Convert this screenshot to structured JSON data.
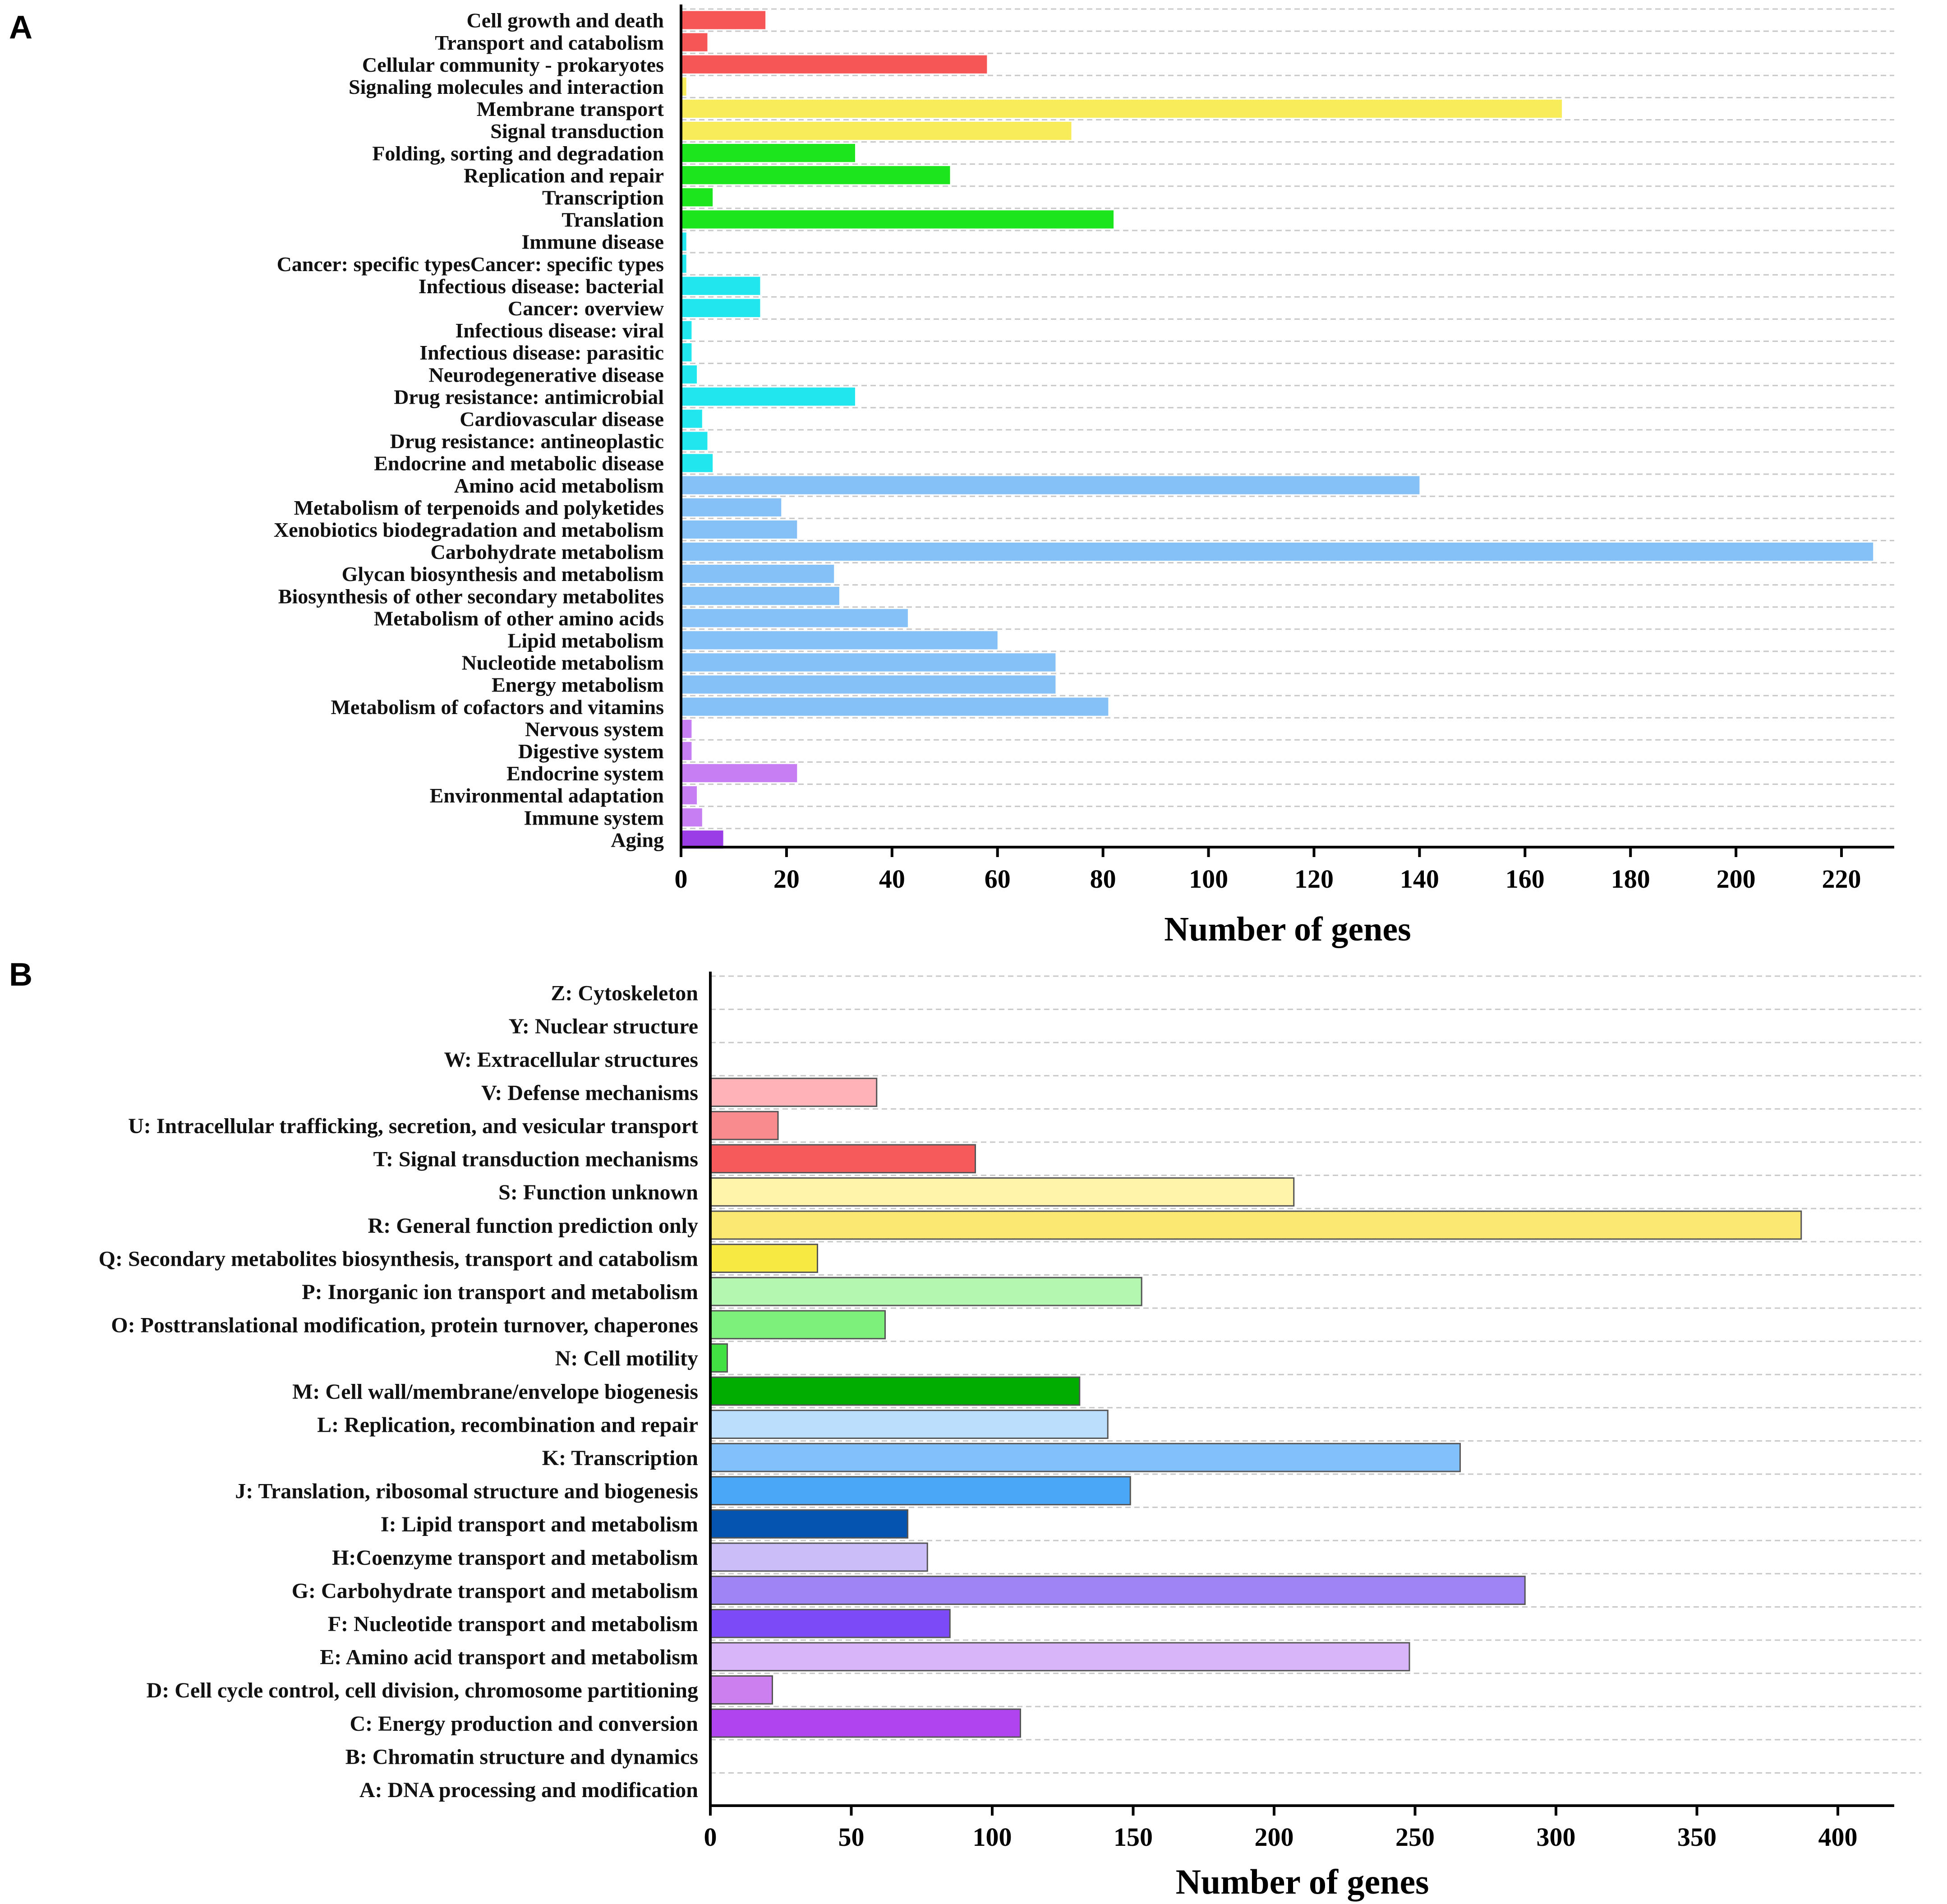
{
  "chart_data": [
    {
      "panel": "A",
      "type": "bar",
      "orientation": "horizontal",
      "title": "",
      "xlabel": "Number of genes",
      "ylabel": "",
      "xlim": [
        0,
        230
      ],
      "xticks": [
        "0",
        "20",
        "40",
        "60",
        "80",
        "100",
        "120",
        "140",
        "160",
        "180",
        "200",
        "220"
      ],
      "grid": true,
      "categories": [
        "Cell growth and death",
        "Transport and catabolism",
        "Cellular community - prokaryotes",
        "Signaling molecules and interaction",
        "Membrane transport",
        "Signal transduction",
        "Folding, sorting and degradation",
        "Replication and repair",
        "Transcription",
        "Translation",
        "Immune disease",
        "Cancer: specific typesCancer: specific types",
        "Infectious disease: bacterial",
        "Cancer: overview",
        "Infectious disease: viral",
        "Infectious disease: parasitic",
        "Neurodegenerative disease",
        "Drug resistance: antimicrobial",
        "Cardiovascular disease",
        "Drug resistance: antineoplastic",
        "Endocrine and metabolic disease",
        "Amino acid metabolism",
        "Metabolism of terpenoids and polyketides",
        "Xenobiotics biodegradation and metabolism",
        "Carbohydrate metabolism",
        "Glycan biosynthesis and metabolism",
        "Biosynthesis of other secondary metabolites",
        "Metabolism of other amino acids",
        "Lipid metabolism",
        "Nucleotide metabolism",
        "Energy metabolism",
        "Metabolism of cofactors and vitamins",
        "Nervous system",
        "Digestive system",
        "Endocrine system",
        "Environmental adaptation",
        "Immune system",
        "Aging"
      ],
      "values": [
        16,
        5,
        58,
        1,
        167,
        74,
        33,
        51,
        6,
        82,
        1,
        1,
        15,
        15,
        2,
        2,
        3,
        33,
        4,
        5,
        6,
        140,
        19,
        22,
        226,
        29,
        30,
        43,
        60,
        71,
        71,
        81,
        2,
        2,
        22,
        3,
        4,
        8
      ],
      "colors": [
        "#f75656",
        "#f75656",
        "#f75656",
        "#f8ec5a",
        "#f8ec5a",
        "#f8ec5a",
        "#1de51d",
        "#1de51d",
        "#1de51d",
        "#1de51d",
        "#22e6ee",
        "#22e6ee",
        "#22e6ee",
        "#22e6ee",
        "#22e6ee",
        "#22e6ee",
        "#22e6ee",
        "#22e6ee",
        "#22e6ee",
        "#22e6ee",
        "#22e6ee",
        "#85c1f7",
        "#85c1f7",
        "#85c1f7",
        "#85c1f7",
        "#85c1f7",
        "#85c1f7",
        "#85c1f7",
        "#85c1f7",
        "#85c1f7",
        "#85c1f7",
        "#85c1f7",
        "#c77ef2",
        "#c77ef2",
        "#c77ef2",
        "#c77ef2",
        "#c77ef2",
        "#9b3de6"
      ]
    },
    {
      "panel": "B",
      "type": "bar",
      "orientation": "horizontal",
      "title": "",
      "xlabel": "Number of genes",
      "ylabel": "",
      "xlim": [
        0,
        420
      ],
      "xticks": [
        "0",
        "50",
        "100",
        "150",
        "200",
        "250",
        "300",
        "350",
        "400"
      ],
      "grid": true,
      "categories": [
        "Z: Cytoskeleton",
        "Y: Nuclear structure",
        "W: Extracellular  structures",
        "V: Defense mechanisms",
        "U: Intracellular trafficking, secretion, and vesicular transport",
        "T: Signal transduction mechanisms",
        "S: Function unknown",
        "R: General function prediction only",
        "Q: Secondary metabolites biosynthesis, transport and  catabolism",
        "P: Inorganic ion transport and metabolism",
        "O: Posttranslational modification, protein turnover, chaperones",
        "N: Cell motility",
        "M: Cell wall/membrane/envelope biogenesis",
        "L: Replication, recombination and repair",
        "K: Transcription",
        "J: Translation, ribosomal structure and biogenesis",
        "I: Lipid transport and metabolism",
        "H:Coenzyme transport and metabolism",
        "G: Carbohydrate transport and metabolism",
        "F: Nucleotide transport and metabolism",
        "E: Amino acid transport and metabolism",
        "D: Cell cycle control, cell division, chromosome partitioning",
        "C: Energy production and conversion",
        "B: Chromatin structure and dynamics",
        "A: DNA processing and modification"
      ],
      "values": [
        0,
        0,
        0,
        59,
        24,
        94,
        207,
        387,
        38,
        153,
        62,
        6,
        131,
        141,
        266,
        149,
        70,
        77,
        289,
        85,
        248,
        22,
        110,
        0,
        0
      ],
      "colors": [
        "#ffffff",
        "#ffffff",
        "#ffffff",
        "#ffb3b8",
        "#f98a8d",
        "#f75a5a",
        "#fff4aa",
        "#fbe872",
        "#f8e842",
        "#b4f7b0",
        "#7def7b",
        "#42e042",
        "#00ad00",
        "#bcdefd",
        "#82c0fb",
        "#4aa6f7",
        "#0555b0",
        "#cabdf8",
        "#9f84f6",
        "#7c4af6",
        "#d8b4f8",
        "#cc80f0",
        "#b044ee",
        "#ffffff",
        "#ffffff"
      ]
    }
  ]
}
